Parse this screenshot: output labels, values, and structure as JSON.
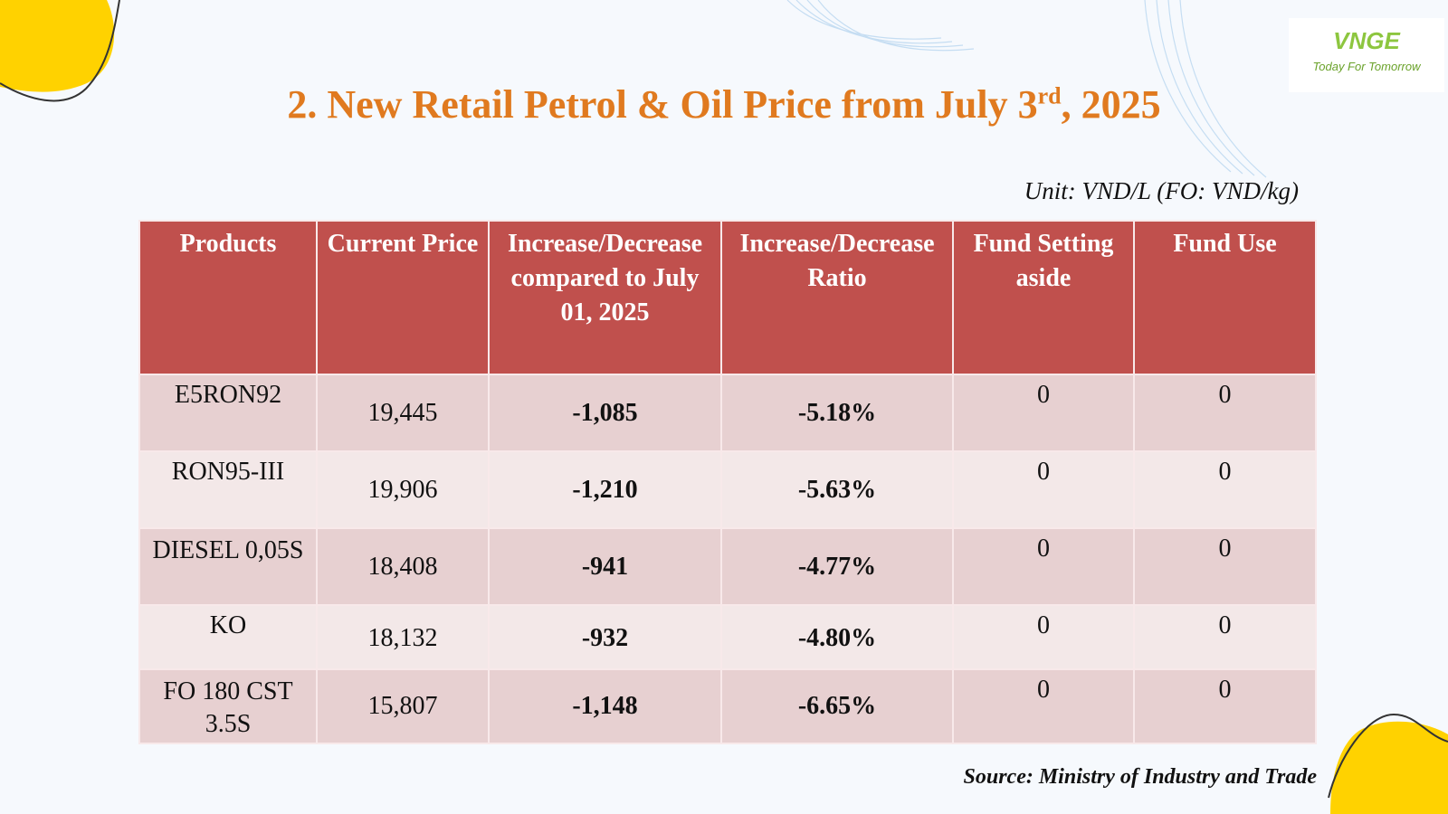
{
  "slide": {
    "title": "2. New Retail Petrol & Oil Price from July 3",
    "title_sup": "rd",
    "title_tail": ", 2025",
    "unit": "Unit: VND/L (FO: VND/kg)",
    "source": "Source: Ministry of Industry and Trade"
  },
  "logo": {
    "mark": "VNGE",
    "tagline": "Today For Tomorrow"
  },
  "colors": {
    "title": "#e07a1f",
    "header_bg": "#c0504d",
    "row_odd": "#e7d0d1",
    "row_even": "#f3e8e8",
    "negative": "#ee1c1c",
    "accent_yellow": "#ffd200"
  },
  "table": {
    "headers": [
      "Products",
      "Current Price",
      "Increase/Decrease compared to July 01, 2025",
      "Increase/Decrease Ratio",
      "Fund Setting aside",
      "Fund Use"
    ],
    "rows": [
      {
        "product": "E5RON92",
        "price": "19,445",
        "change": "-1,085",
        "ratio": "-5.18%",
        "fund_setting": "0",
        "fund_use": "0"
      },
      {
        "product": "RON95-III",
        "price": "19,906",
        "change": "-1,210",
        "ratio": "-5.63%",
        "fund_setting": "0",
        "fund_use": "0"
      },
      {
        "product": "DIESEL 0,05S",
        "price": "18,408",
        "change": "-941",
        "ratio": "-4.77%",
        "fund_setting": "0",
        "fund_use": "0"
      },
      {
        "product": "KO",
        "price": "18,132",
        "change": "-932",
        "ratio": "-4.80%",
        "fund_setting": "0",
        "fund_use": "0"
      },
      {
        "product": "FO 180 CST 3.5S",
        "price": "15,807",
        "change": "-1,148",
        "ratio": "-6.65%",
        "fund_setting": "0",
        "fund_use": "0"
      }
    ]
  }
}
